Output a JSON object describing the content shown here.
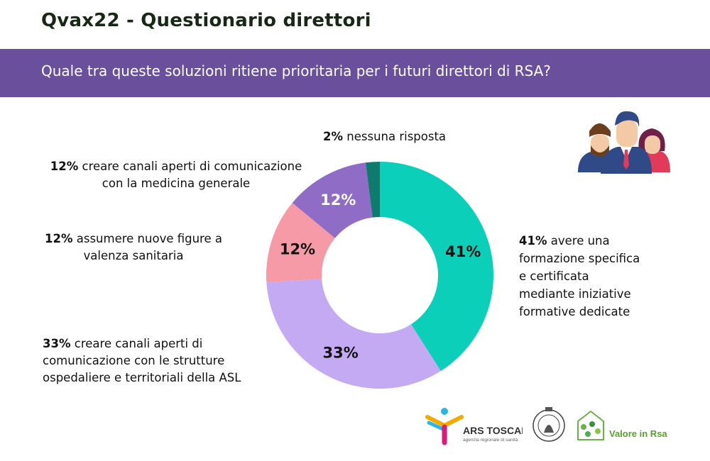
{
  "header": {
    "title": "Qvax22 - Questionario direttori",
    "question": "Quale tra queste soluzioni ritiene prioritaria per i futuri direttori di RSA?"
  },
  "colors": {
    "banner": "#6a4f9c",
    "title": "#172815"
  },
  "chart_data": {
    "type": "pie",
    "donut": true,
    "slices": [
      {
        "value": 41,
        "pct_label": "41%",
        "label_lines": [
          "avere una",
          "formazione specifica",
          "e certificata",
          "mediante iniziative",
          "formative dedicate"
        ],
        "color": "#0ccfb9",
        "inner_label_color": "#111111"
      },
      {
        "value": 33,
        "pct_label": "33%",
        "label_lines": [
          "creare canali aperti di",
          "comunicazione con le strutture",
          "ospedaliere e territoriali della ASL"
        ],
        "color": "#c4aaf2",
        "inner_label_color": "#111111"
      },
      {
        "value": 12,
        "pct_label": "12%",
        "label_lines": [
          "assumere nuove figure a",
          "valenza sanitaria"
        ],
        "color": "#f59aa6",
        "inner_label_color": "#111111"
      },
      {
        "value": 12,
        "pct_label": "12%",
        "label_lines": [
          "creare canali aperti di comunicazione",
          "con la medicina generale"
        ],
        "color": "#8f6cc6",
        "inner_label_color": "#ffffff"
      },
      {
        "value": 2,
        "pct_label": "2%",
        "label_lines": [
          "nessuna risposta"
        ],
        "color": "#0f7a6e",
        "inner_label_color": ""
      }
    ]
  },
  "logos": {
    "ars_main": "ARS TOSCANA",
    "ars_sub": "agenzia regionale di sanità",
    "valore": "Valore in Rsa"
  },
  "icons": {
    "people": "group-of-people-icon",
    "university": "university-seal-icon"
  }
}
